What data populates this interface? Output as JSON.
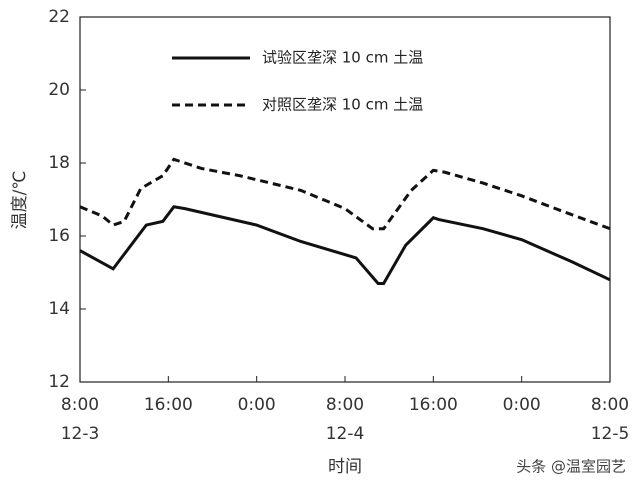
{
  "chart_data": {
    "type": "line",
    "y_label": "温度/℃",
    "x_label": "时间",
    "xlim": [
      0,
      48
    ],
    "ylim": [
      12,
      22
    ],
    "xticks": [
      {
        "value": 0,
        "label": "8:00"
      },
      {
        "value": 8,
        "label": "16:00"
      },
      {
        "value": 16,
        "label": "0:00"
      },
      {
        "value": 24,
        "label": "8:00"
      },
      {
        "value": 32,
        "label": "16:00"
      },
      {
        "value": 40,
        "label": "0:00"
      },
      {
        "value": 48,
        "label": "8:00"
      }
    ],
    "date_ticks": [
      {
        "value": 0,
        "label": "12-3"
      },
      {
        "value": 24,
        "label": "12-4"
      },
      {
        "value": 48,
        "label": "12-5"
      }
    ],
    "yticks": [
      12,
      14,
      16,
      18,
      20,
      22
    ],
    "series": [
      {
        "name": "试验区垄深 10 cm 土温",
        "color": "#111111",
        "dash": "solid",
        "x": [
          0,
          3,
          4,
          6,
          7.5,
          8.5,
          9.5,
          16,
          20,
          25,
          27,
          27.5,
          29.5,
          32,
          32.5,
          36.5,
          40,
          44.5,
          48
        ],
        "values": [
          15.6,
          15.1,
          15.5,
          16.3,
          16.4,
          16.8,
          16.75,
          16.3,
          15.85,
          15.4,
          14.7,
          14.7,
          15.75,
          16.5,
          16.45,
          16.2,
          15.9,
          15.3,
          14.8
        ]
      },
      {
        "name": "对照区垄深 10 cm 土温",
        "color": "#111111",
        "dash": "dashed",
        "x": [
          0,
          2,
          3,
          4,
          5.5,
          7.5,
          8.5,
          11,
          14.5,
          20,
          24,
          26.5,
          27.5,
          30,
          32,
          33,
          36.5,
          40,
          43.5,
          48
        ],
        "values": [
          16.8,
          16.55,
          16.3,
          16.4,
          17.3,
          17.65,
          18.1,
          17.85,
          17.65,
          17.25,
          16.75,
          16.2,
          16.2,
          17.25,
          17.8,
          17.75,
          17.45,
          17.1,
          16.7,
          16.2
        ]
      }
    ]
  },
  "watermark": "头条 @温室园艺"
}
